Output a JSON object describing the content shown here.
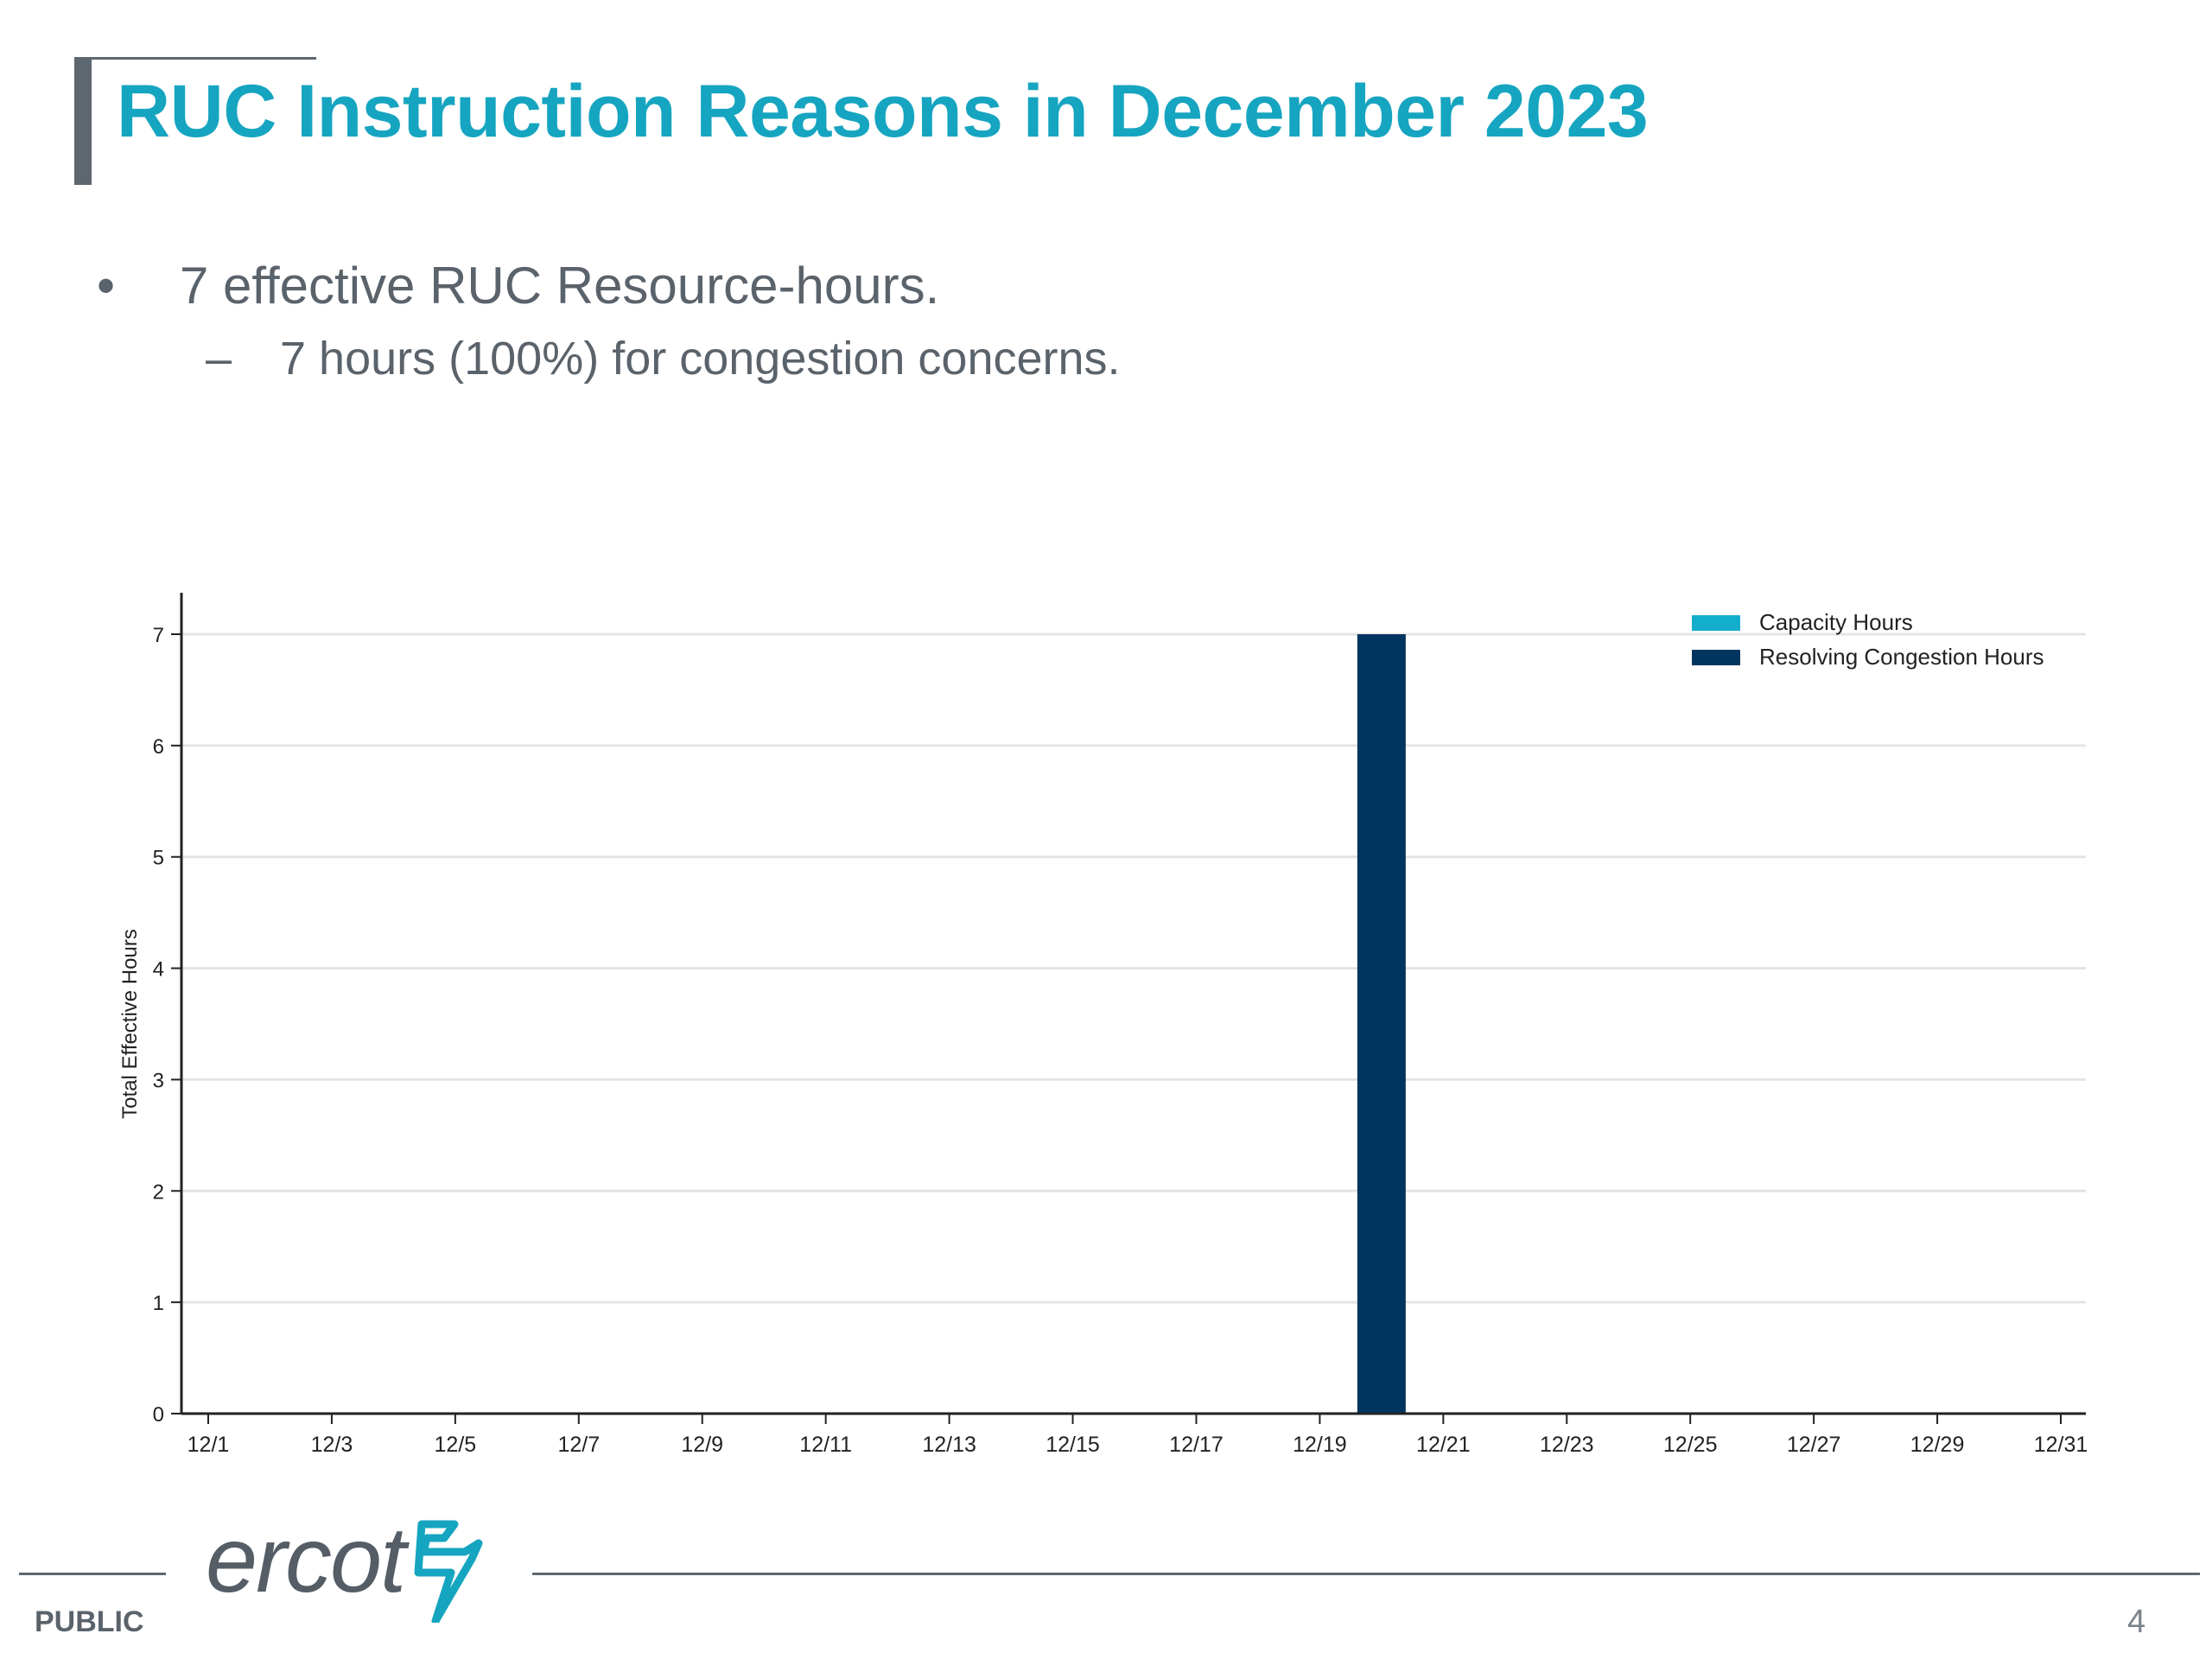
{
  "slide": {
    "title": "RUC Instruction Reasons in December 2023",
    "bullet1": "7 effective RUC Resource-hours.",
    "bullet1_marker": "•",
    "bullet2": "7 hours (100%) for congestion concerns.",
    "bullet2_marker": "–",
    "classification": "PUBLIC",
    "page_number": "4",
    "logo_text": "ercot"
  },
  "colors": {
    "title": "#16a5c0",
    "capacity": "#12aecb",
    "congestion": "#003560",
    "grid": "#e4e4e4",
    "axis": "#222222"
  },
  "chart_data": {
    "type": "bar",
    "stacked": true,
    "x_tick_labels": [
      "12/1",
      "12/3",
      "12/5",
      "12/7",
      "12/9",
      "12/11",
      "12/13",
      "12/15",
      "12/17",
      "12/19",
      "12/21",
      "12/23",
      "12/25",
      "12/27",
      "12/29",
      "12/31"
    ],
    "series": [
      {
        "name": "Capacity Hours",
        "color": "#12aecb",
        "values": []
      },
      {
        "name": "Resolving Congestion Hours",
        "color": "#003560",
        "values": [
          {
            "x": "12/20",
            "y": 7
          }
        ]
      }
    ],
    "xlim": [
      "12/1",
      "12/31"
    ],
    "ylabel": "Total Effective Hours",
    "ylim": [
      0,
      7
    ],
    "yticks": [
      0,
      1,
      2,
      3,
      4,
      5,
      6,
      7
    ],
    "grid": true,
    "legend_position": "top-right"
  }
}
